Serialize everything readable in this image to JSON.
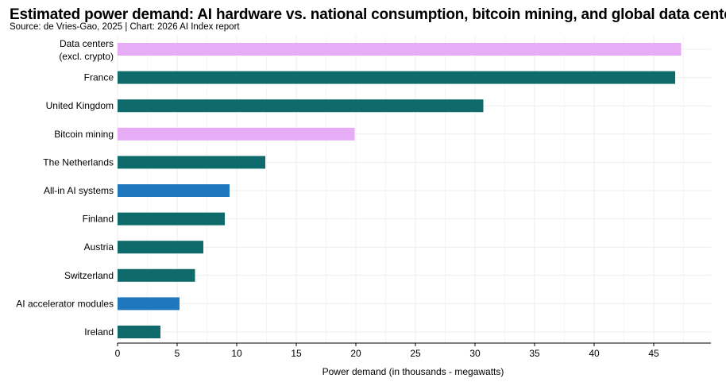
{
  "title": "Estimated power demand: AI hardware  vs. national consumption, bitcoin mining, and global data centers",
  "source": "Source: de Vries-Gao, 2025 | Chart: 2026 AI Index report",
  "colors": {
    "pink": "#e6acf6",
    "teal": "#0f6b6b",
    "blue": "#1f78be",
    "grid": "#eeeeee",
    "axis": "#000000"
  },
  "chart_data": {
    "type": "bar",
    "orientation": "horizontal",
    "title": "Estimated power demand: AI hardware  vs. national consumption, bitcoin mining, and global data centers",
    "xlabel": "Power demand (in thousands - megawatts)",
    "ylabel": "",
    "xlim": [
      0,
      50
    ],
    "xticks": [
      0,
      5,
      10,
      15,
      20,
      25,
      30,
      35,
      40,
      45
    ],
    "grid": true,
    "categories": [
      [
        "Data centers",
        "(excl. crypto)"
      ],
      [
        "France"
      ],
      [
        "United Kingdom"
      ],
      [
        "Bitcoin mining"
      ],
      [
        "The Netherlands"
      ],
      [
        "All-in AI systems"
      ],
      [
        "Finland"
      ],
      [
        "Austria"
      ],
      [
        "Switzerland"
      ],
      [
        "AI accelerator modules"
      ],
      [
        "Ireland"
      ]
    ],
    "values": [
      47.3,
      46.8,
      30.7,
      19.9,
      12.4,
      9.4,
      9.0,
      7.2,
      6.5,
      5.2,
      3.6
    ],
    "bar_colors": [
      "pink",
      "teal",
      "teal",
      "pink",
      "teal",
      "blue",
      "teal",
      "teal",
      "teal",
      "blue",
      "teal"
    ]
  }
}
